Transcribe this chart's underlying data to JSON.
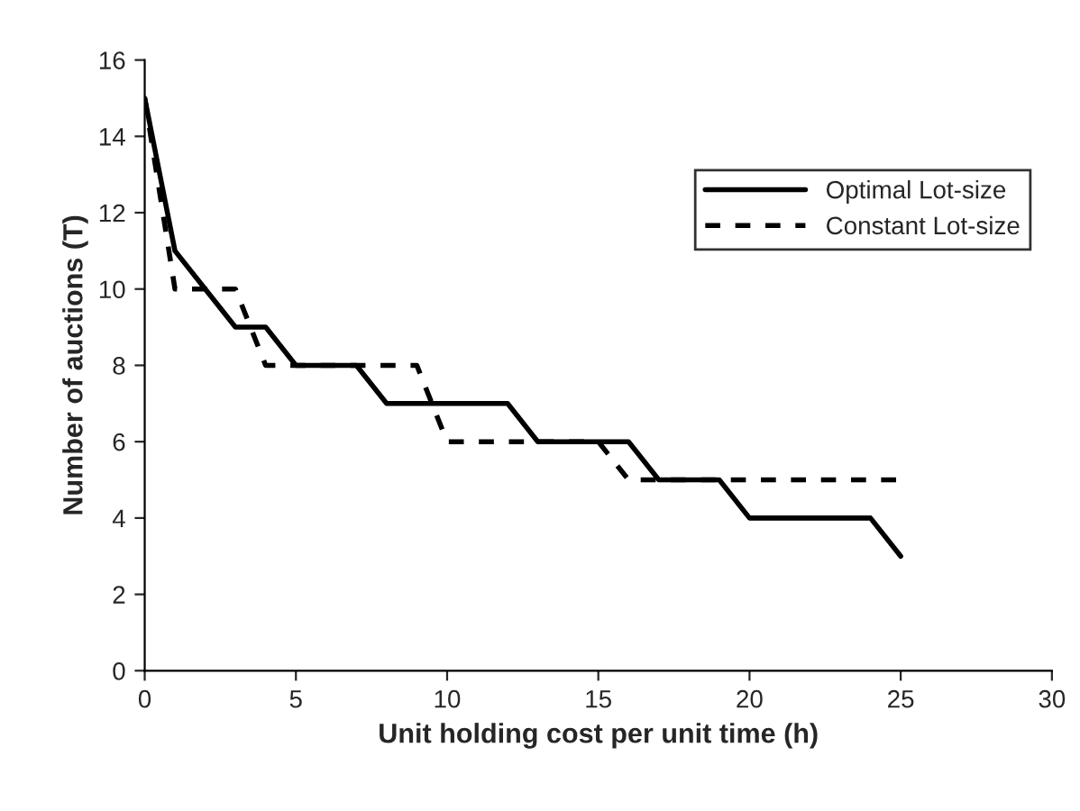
{
  "chart_data": {
    "type": "line",
    "xlabel": "Unit holding cost per unit time (h)",
    "ylabel": "Number of auctions (T)",
    "x": [
      0,
      1,
      2,
      3,
      4,
      5,
      6,
      7,
      8,
      9,
      10,
      11,
      12,
      13,
      14,
      15,
      16,
      17,
      18,
      19,
      20,
      21,
      22,
      23,
      24,
      25
    ],
    "series": [
      {
        "name": "Optimal Lot-size",
        "color": "#000000",
        "line_style": "solid",
        "values": [
          15,
          11,
          10,
          9,
          9,
          8,
          8,
          8,
          7,
          7,
          7,
          7,
          7,
          6,
          6,
          6,
          6,
          5,
          5,
          5,
          4,
          4,
          4,
          4,
          4,
          3
        ]
      },
      {
        "name": "Constant Lot-size",
        "color": "#000000",
        "line_style": "dashed",
        "values": [
          15,
          10,
          10,
          10,
          8,
          8,
          8,
          8,
          8,
          8,
          6,
          6,
          6,
          6,
          6,
          6,
          5,
          5,
          5,
          5,
          5,
          5,
          5,
          5,
          5,
          5
        ]
      }
    ],
    "xlim": [
      0,
      30
    ],
    "xticks": [
      0,
      5,
      10,
      15,
      20,
      25,
      30
    ],
    "ylim": [
      0,
      16
    ],
    "yticks": [
      0,
      2,
      4,
      6,
      8,
      10,
      12,
      14,
      16
    ],
    "grid": false,
    "legend": "top right",
    "marker": "none"
  }
}
